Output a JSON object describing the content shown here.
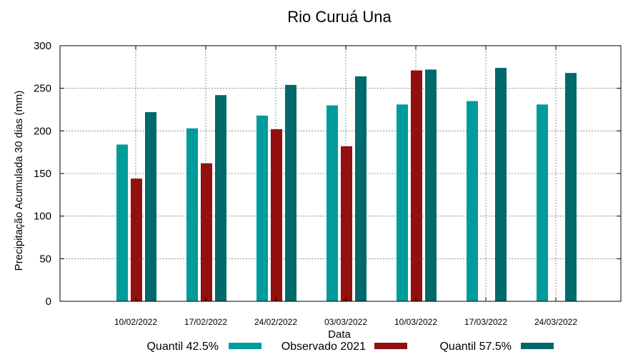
{
  "chart_data": {
    "type": "bar",
    "title": "Rio Curuá Una",
    "xlabel": "Data",
    "ylabel": "Precipitação Acumulada 30 dias (mm)",
    "ylim": [
      0,
      300
    ],
    "yticks": [
      0,
      50,
      100,
      150,
      200,
      250,
      300
    ],
    "grid": true,
    "legend_position": "bottom",
    "categories": [
      "10/02/2022",
      "17/02/2022",
      "24/02/2022",
      "03/03/2022",
      "10/03/2022",
      "17/03/2022",
      "24/03/2022"
    ],
    "series": [
      {
        "name": "Quantil 42.5%",
        "color": "#009b9b",
        "values": [
          184,
          203,
          218,
          230,
          231,
          235,
          231
        ]
      },
      {
        "name": "Observado 2021",
        "color": "#921010",
        "values": [
          144,
          162,
          202,
          182,
          271,
          null,
          null
        ]
      },
      {
        "name": "Quantil 57.5%",
        "color": "#006a6a",
        "values": [
          222,
          242,
          254,
          264,
          272,
          274,
          268
        ]
      }
    ]
  }
}
